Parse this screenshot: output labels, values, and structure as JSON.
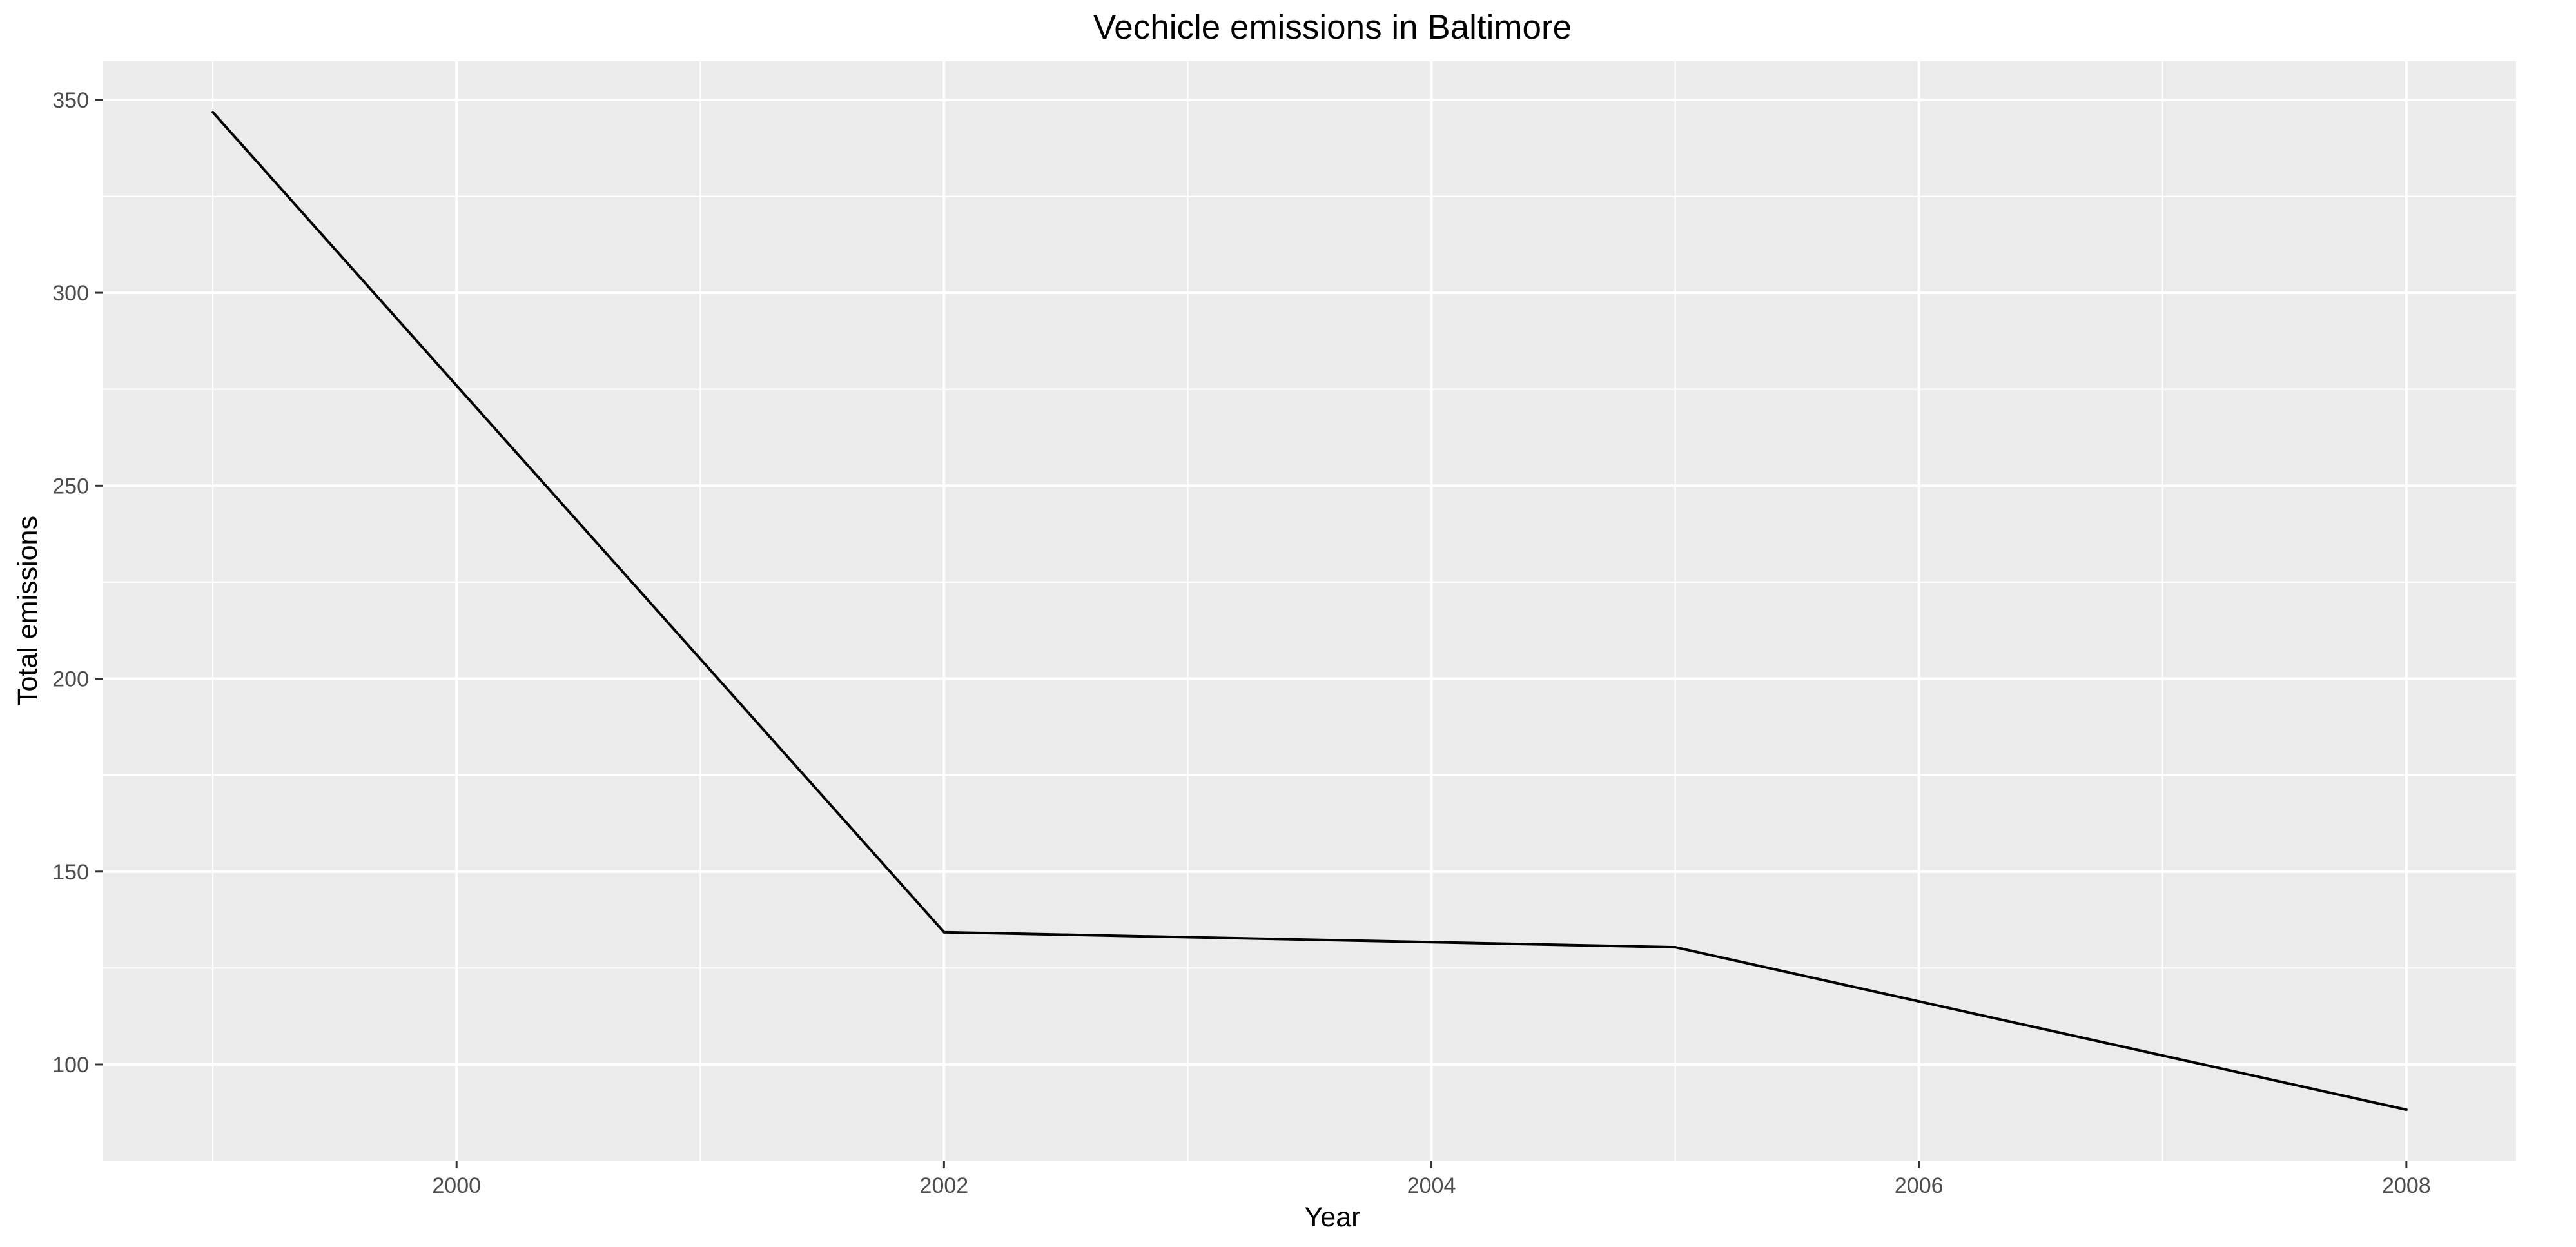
{
  "chart_data": {
    "type": "line",
    "title": "Vechicle emissions in Baltimore",
    "xlabel": "Year",
    "ylabel": "Total emissions",
    "x": [
      1999,
      2002,
      2005,
      2008
    ],
    "series": [
      {
        "values": [
          346.8,
          134.3,
          130.4,
          88.3
        ]
      }
    ],
    "xlim": [
      1998.55,
      2008.45
    ],
    "ylim": [
      75.1,
      360.0
    ],
    "xticks": [
      2000,
      2002,
      2004,
      2006,
      2008
    ],
    "yticks": [
      100,
      150,
      200,
      250,
      300,
      350
    ],
    "grid": true,
    "legend": "none",
    "colors": {
      "panel": "#ebebeb",
      "grid": "#ffffff",
      "line": "#000000",
      "tick_text": "#4d4d4d",
      "tick_mark": "#333333"
    }
  }
}
